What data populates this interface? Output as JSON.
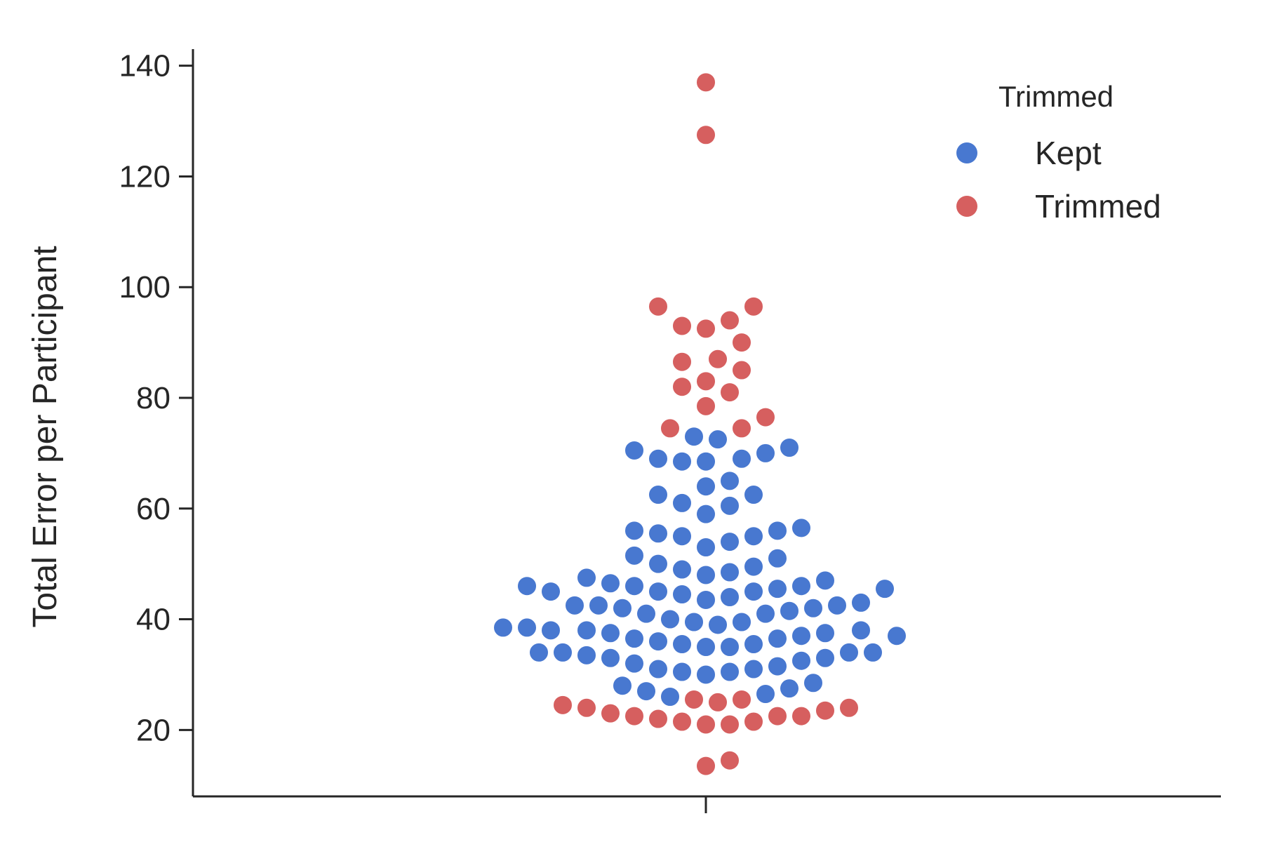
{
  "chart_data": {
    "type": "scatter",
    "subtype": "swarm",
    "title": "",
    "xlabel": "",
    "ylabel": "Total Error per Participant",
    "ylim": [
      8,
      143
    ],
    "yticks": [
      20,
      40,
      60,
      80,
      100,
      120,
      140
    ],
    "grid": false,
    "legend": {
      "title": "Trimmed",
      "placement": "top-right",
      "entries": [
        {
          "label": "Kept",
          "color": "#4878d0"
        },
        {
          "label": "Trimmed",
          "color": "#d65f5f"
        }
      ]
    },
    "series": [
      {
        "name": "Kept",
        "color": "#4878d0",
        "values": [
          26,
          26.5,
          27,
          27.5,
          28,
          28.5,
          30,
          30.5,
          30.5,
          31,
          31,
          31.5,
          32,
          32.5,
          33,
          33,
          33.5,
          34,
          34,
          34,
          34,
          35,
          35,
          35.5,
          35.5,
          36,
          36.5,
          36.5,
          37,
          37,
          37.5,
          37.5,
          38,
          38,
          38,
          38.5,
          38.5,
          39,
          39.5,
          39.5,
          40,
          41,
          41,
          41.5,
          42,
          42,
          42.5,
          42.5,
          42.5,
          43,
          43.5,
          44,
          44.5,
          45,
          45,
          45,
          45.5,
          45.5,
          46,
          46,
          46,
          46.5,
          47,
          47.5,
          48,
          48.5,
          49,
          49.5,
          50,
          51,
          51.5,
          53,
          54,
          55,
          55,
          55.5,
          56,
          56,
          56.5,
          59,
          60.5,
          61,
          62.5,
          62.5,
          64,
          65,
          68.5,
          68.5,
          69,
          69,
          70,
          70.5,
          71,
          72.5,
          73
        ]
      },
      {
        "name": "Trimmed",
        "color": "#d65f5f",
        "values": [
          13.5,
          14.5,
          21,
          21,
          21.5,
          21.5,
          22,
          22.5,
          22.5,
          22.5,
          23,
          23.5,
          24,
          24,
          24.5,
          25,
          25.5,
          25.5,
          74.5,
          74.5,
          76.5,
          78.5,
          81,
          82,
          83,
          85,
          86.5,
          87,
          90,
          92.5,
          93,
          94,
          96.5,
          96.5,
          127.5,
          137
        ]
      }
    ]
  }
}
